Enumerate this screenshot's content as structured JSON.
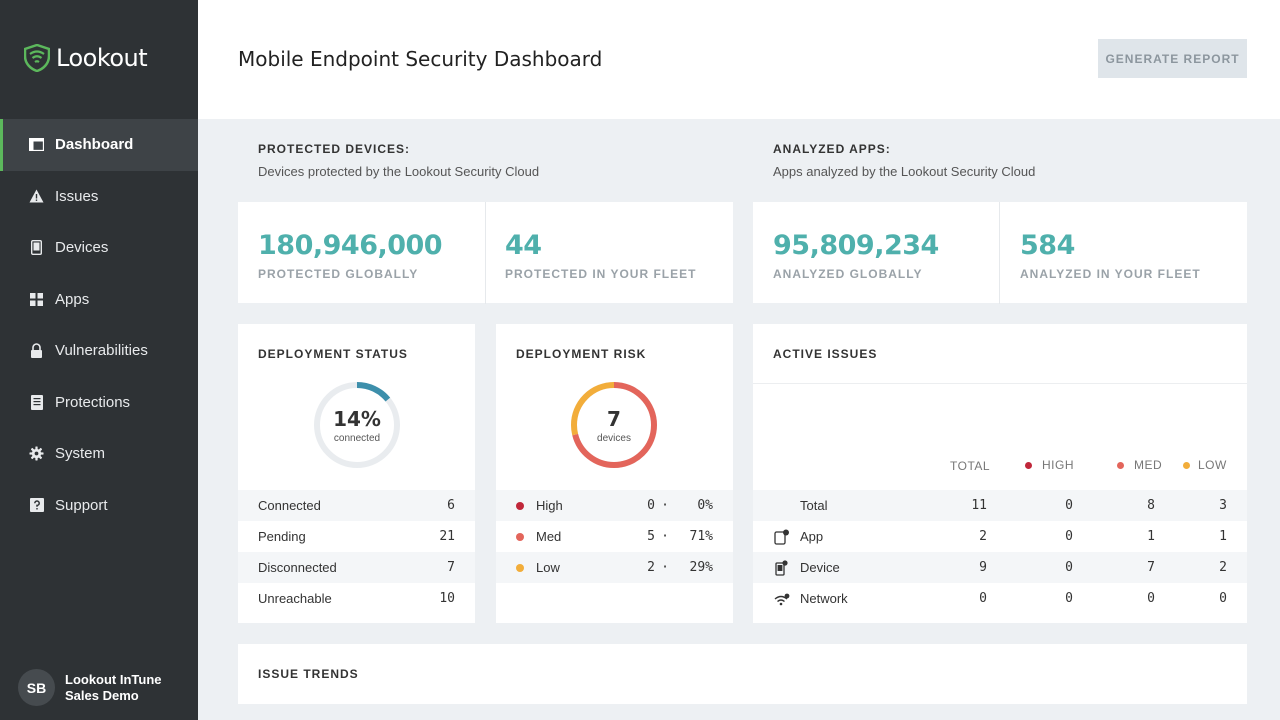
{
  "app": {
    "brand": "Lookout"
  },
  "sidebar": {
    "items": [
      {
        "label": "Dashboard",
        "icon": "dashboard-icon"
      },
      {
        "label": "Issues",
        "icon": "warning-icon"
      },
      {
        "label": "Devices",
        "icon": "phone-icon"
      },
      {
        "label": "Apps",
        "icon": "grid-icon"
      },
      {
        "label": "Vulnerabilities",
        "icon": "lock-icon"
      },
      {
        "label": "Protections",
        "icon": "document-icon"
      },
      {
        "label": "System",
        "icon": "gear-icon"
      },
      {
        "label": "Support",
        "icon": "help-icon"
      }
    ],
    "active": "Dashboard",
    "user": {
      "initials": "SB",
      "name": "Lookout InTune Sales Demo"
    }
  },
  "header": {
    "title": "Mobile Endpoint Security Dashboard",
    "button": "GENERATE REPORT"
  },
  "protected": {
    "title": "PROTECTED DEVICES:",
    "subtitle": "Devices protected by the Lookout Security Cloud",
    "global_value": "180,946,000",
    "global_label": "PROTECTED GLOBALLY",
    "fleet_value": "44",
    "fleet_label": "PROTECTED IN YOUR FLEET"
  },
  "analyzed": {
    "title": "ANALYZED APPS:",
    "subtitle": "Apps analyzed by the Lookout Security Cloud",
    "global_value": "95,809,234",
    "global_label": "ANALYZED GLOBALLY",
    "fleet_value": "584",
    "fleet_label": "ANALYZED IN YOUR FLEET"
  },
  "deployment_status": {
    "title": "DEPLOYMENT STATUS",
    "center_value": "14%",
    "center_label": "connected",
    "connected_fraction": 0.14,
    "rows": [
      {
        "label": "Connected",
        "value": "6"
      },
      {
        "label": "Pending",
        "value": "21"
      },
      {
        "label": "Disconnected",
        "value": "7"
      },
      {
        "label": "Unreachable",
        "value": "10"
      }
    ]
  },
  "deployment_risk": {
    "title": "DEPLOYMENT RISK",
    "center_value": "7",
    "center_label": "devices",
    "rows": [
      {
        "label": "High",
        "count": "0",
        "sep": "·",
        "pct": "0%",
        "color": "#c0273a",
        "fraction": 0
      },
      {
        "label": "Med",
        "count": "5",
        "sep": "·",
        "pct": "71%",
        "color": "#e3655b",
        "fraction": 0.71
      },
      {
        "label": "Low",
        "count": "2",
        "sep": "·",
        "pct": "29%",
        "color": "#f2ad3a",
        "fraction": 0.29
      }
    ]
  },
  "active_issues": {
    "title": "ACTIVE ISSUES",
    "headers": {
      "total": "TOTAL",
      "high": "HIGH",
      "med": "MED",
      "low": "LOW"
    },
    "rows": [
      {
        "name": "Total",
        "icon": "",
        "total": "11",
        "high": "0",
        "med": "8",
        "low": "3"
      },
      {
        "name": "App",
        "icon": "app-icon",
        "total": "2",
        "high": "0",
        "med": "1",
        "low": "1"
      },
      {
        "name": "Device",
        "icon": "device-icon",
        "total": "9",
        "high": "0",
        "med": "7",
        "low": "2"
      },
      {
        "name": "Network",
        "icon": "wifi-icon",
        "total": "0",
        "high": "0",
        "med": "0",
        "low": "0"
      }
    ]
  },
  "issue_trends": {
    "title": "ISSUE TRENDS"
  },
  "colors": {
    "accent": "#4fb0ac",
    "active_nav": "#5cb85c",
    "high": "#c0273a",
    "med": "#e3655b",
    "low": "#f2ad3a",
    "status_ring": "#3d8fab"
  }
}
